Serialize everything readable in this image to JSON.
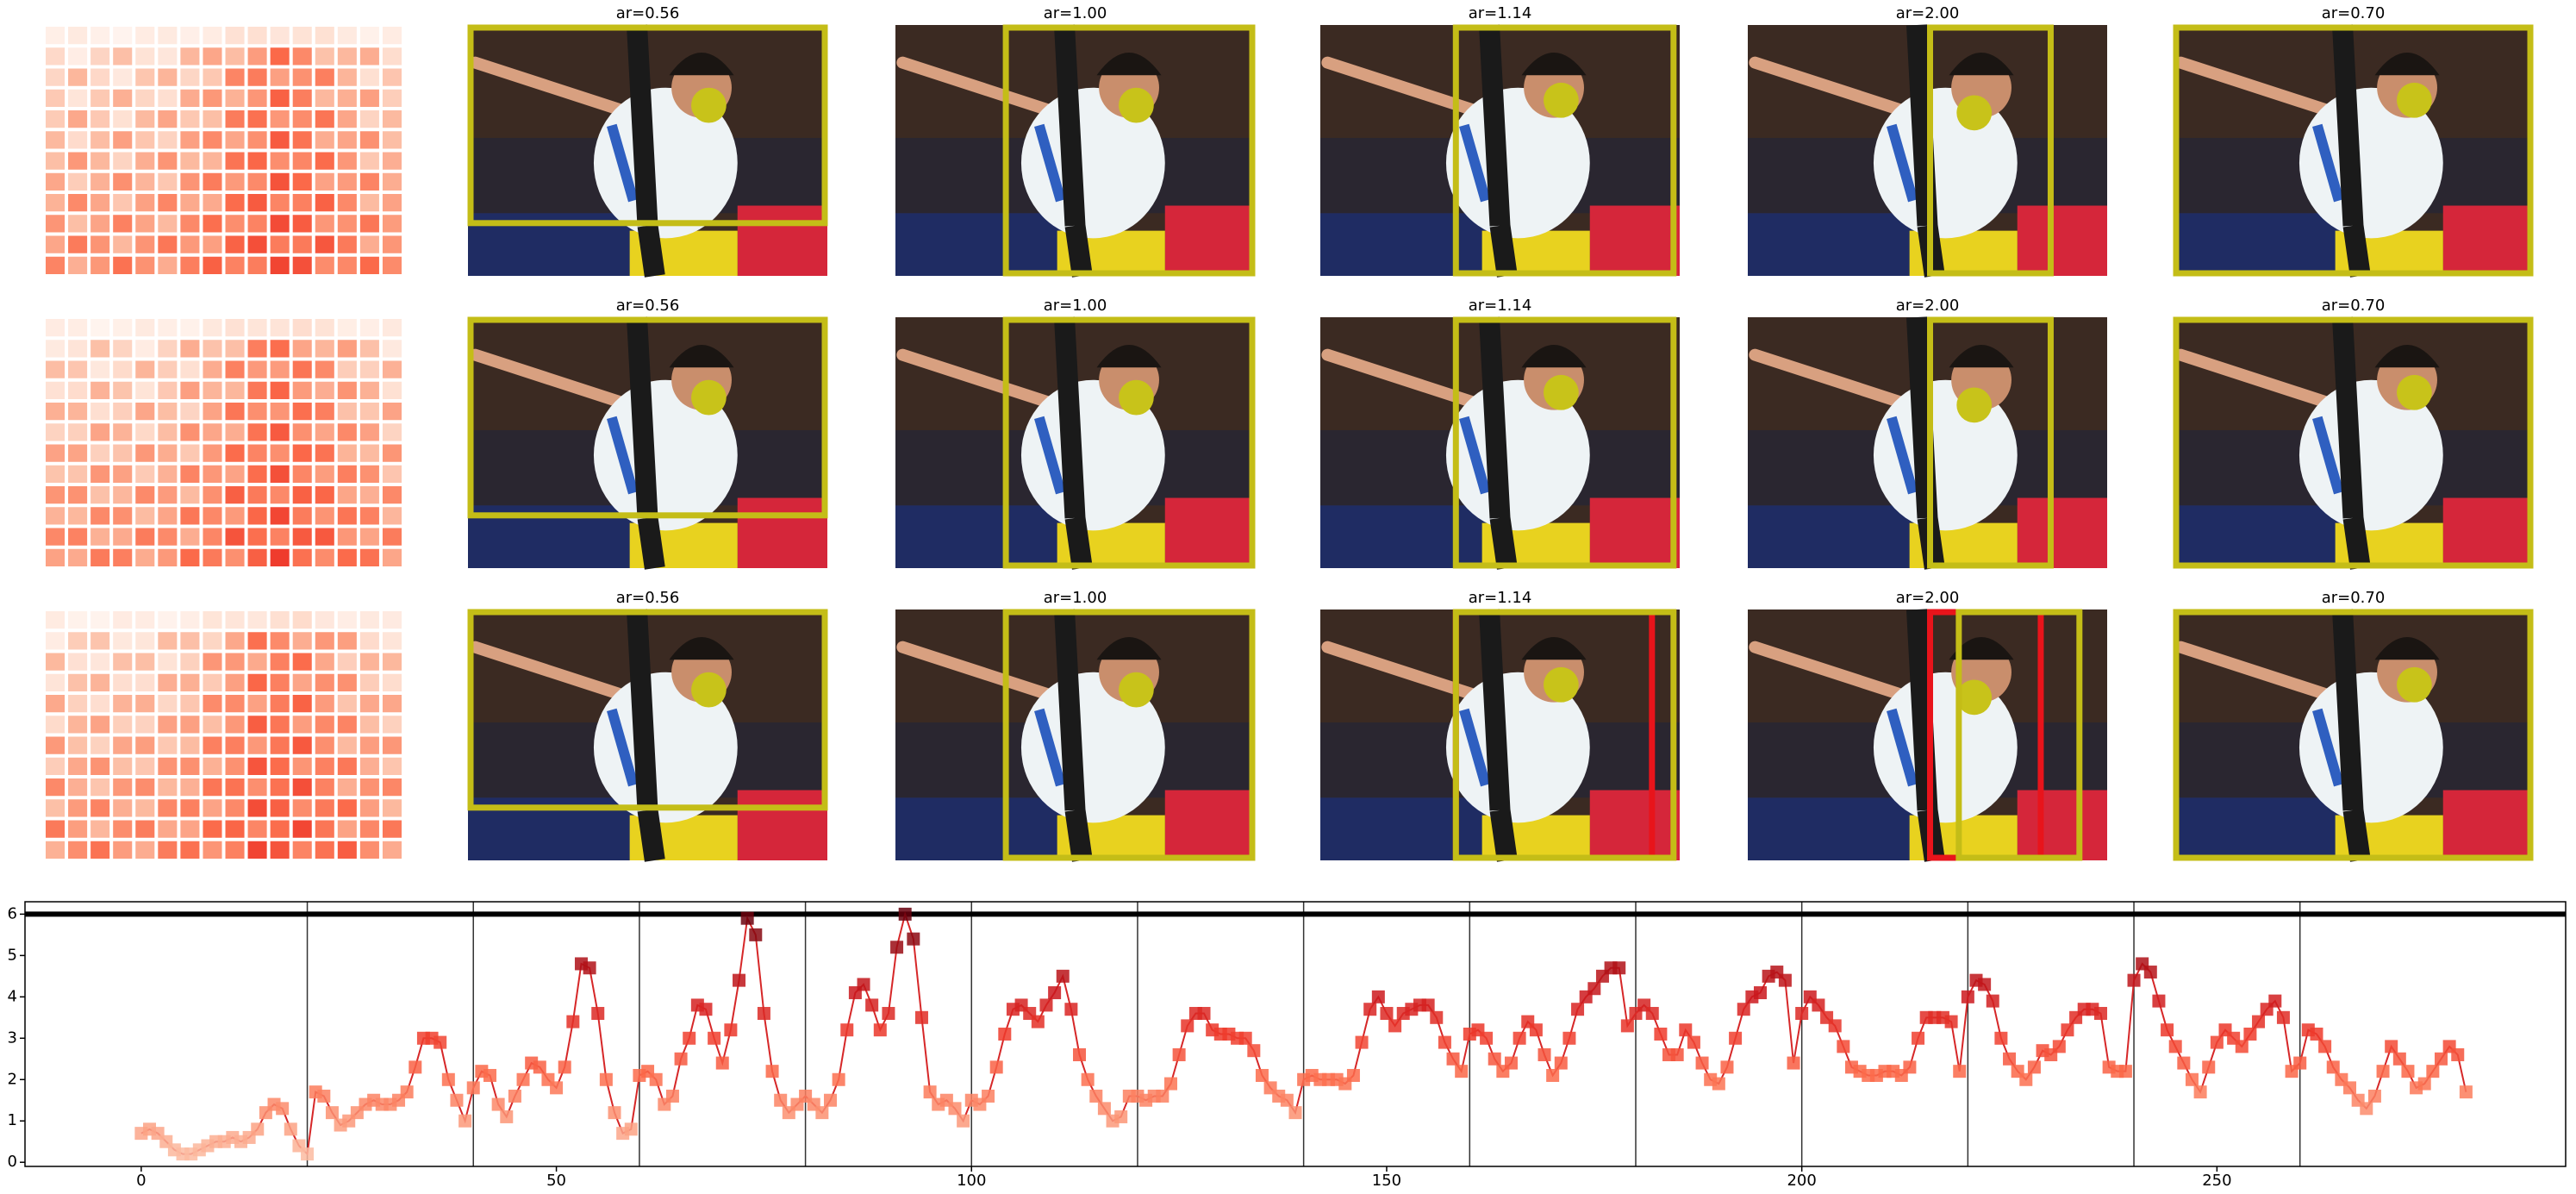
{
  "panels": [
    {
      "titles": [
        "ar=0.56",
        "ar=1.00",
        "ar=1.14",
        "ar=2.00",
        "ar=0.70"
      ]
    },
    {
      "titles": [
        "ar=0.56",
        "ar=1.00",
        "ar=1.14",
        "ar=2.00",
        "ar=0.70"
      ]
    },
    {
      "titles": [
        "ar=0.56",
        "ar=1.00",
        "ar=1.14",
        "ar=2.00",
        "ar=0.70"
      ]
    }
  ],
  "chart_data": {
    "type": "line",
    "color": "#d62728",
    "cmap": "Reds",
    "x": [
      0,
      1,
      2,
      3,
      4,
      5,
      6,
      7,
      8,
      9,
      10,
      11,
      12,
      13,
      14,
      15,
      16,
      17,
      18,
      19,
      20,
      21,
      22,
      23,
      24,
      25,
      26,
      27,
      28,
      29,
      30,
      31,
      32,
      33,
      34,
      35,
      36,
      37,
      38,
      39,
      40,
      41,
      42,
      43,
      44,
      45,
      46,
      47,
      48,
      49,
      50,
      51,
      52,
      53,
      54,
      55,
      56,
      57,
      58,
      59,
      60,
      61,
      62,
      63,
      64,
      65,
      66,
      67,
      68,
      69,
      70,
      71,
      72,
      73,
      74,
      75,
      76,
      77,
      78,
      79,
      80,
      81,
      82,
      83,
      84,
      85,
      86,
      87,
      88,
      89,
      90,
      91,
      92,
      93,
      94,
      95,
      96,
      97,
      98,
      99,
      100,
      101,
      102,
      103,
      104,
      105,
      106,
      107,
      108,
      109,
      110,
      111,
      112,
      113,
      114,
      115,
      116,
      117,
      118,
      119,
      120,
      121,
      122,
      123,
      124,
      125,
      126,
      127,
      128,
      129,
      130,
      131,
      132,
      133,
      134,
      135,
      136,
      137,
      138,
      139,
      140,
      141,
      142,
      143,
      144,
      145,
      146,
      147,
      148,
      149,
      150,
      151,
      152,
      153,
      154,
      155,
      156,
      157,
      158,
      159,
      160,
      161,
      162,
      163,
      164,
      165,
      166,
      167,
      168,
      169,
      170,
      171,
      172,
      173,
      174,
      175,
      176,
      177,
      178,
      179,
      180,
      181,
      182,
      183,
      184,
      185,
      186,
      187,
      188,
      189,
      190,
      191,
      192,
      193,
      194,
      195,
      196,
      197,
      198,
      199,
      200,
      201,
      202,
      203,
      204,
      205,
      206,
      207,
      208,
      209,
      210,
      211,
      212,
      213,
      214,
      215,
      216,
      217,
      218,
      219,
      220,
      221,
      222,
      223,
      224,
      225,
      226,
      227,
      228,
      229,
      230,
      231,
      232,
      233,
      234,
      235,
      236,
      237,
      238,
      239,
      240,
      241,
      242,
      243,
      244,
      245,
      246,
      247,
      248,
      249,
      250,
      251,
      252,
      253,
      254,
      255,
      256,
      257,
      258,
      259,
      260,
      261,
      262,
      263,
      264,
      265,
      266,
      267,
      268,
      269,
      270,
      271,
      272,
      273,
      274,
      275,
      276,
      277,
      278,
      279,
      280
    ],
    "values": [
      0.7,
      0.8,
      0.7,
      0.5,
      0.3,
      0.2,
      0.2,
      0.3,
      0.4,
      0.5,
      0.5,
      0.6,
      0.5,
      0.6,
      0.8,
      1.2,
      1.4,
      1.3,
      0.8,
      0.4,
      0.2,
      1.7,
      1.6,
      1.2,
      0.9,
      1.0,
      1.2,
      1.4,
      1.5,
      1.4,
      1.4,
      1.5,
      1.7,
      2.3,
      3.0,
      3.0,
      2.9,
      2.0,
      1.5,
      1.0,
      1.8,
      2.2,
      2.1,
      1.4,
      1.1,
      1.6,
      2.0,
      2.4,
      2.3,
      2.0,
      1.8,
      2.3,
      3.4,
      4.8,
      4.7,
      3.6,
      2.0,
      1.2,
      0.7,
      0.8,
      2.1,
      2.2,
      2.0,
      1.4,
      1.6,
      2.5,
      3.0,
      3.8,
      3.7,
      3.0,
      2.4,
      3.2,
      4.4,
      5.9,
      5.5,
      3.6,
      2.2,
      1.5,
      1.2,
      1.4,
      1.6,
      1.4,
      1.2,
      1.5,
      2.0,
      3.2,
      4.1,
      4.3,
      3.8,
      3.2,
      3.6,
      5.2,
      6.0,
      5.4,
      3.5,
      1.7,
      1.4,
      1.5,
      1.3,
      1.0,
      1.5,
      1.4,
      1.6,
      2.3,
      3.1,
      3.7,
      3.8,
      3.6,
      3.4,
      3.8,
      4.1,
      4.5,
      3.7,
      2.6,
      2.0,
      1.6,
      1.3,
      1.0,
      1.1,
      1.6,
      1.6,
      1.5,
      1.6,
      1.6,
      1.9,
      2.6,
      3.3,
      3.6,
      3.6,
      3.2,
      3.1,
      3.1,
      3.0,
      3.0,
      2.7,
      2.1,
      1.8,
      1.6,
      1.5,
      1.2,
      2.0,
      2.1,
      2.0,
      2.0,
      2.0,
      1.9,
      2.1,
      2.9,
      3.7,
      4.0,
      3.6,
      3.3,
      3.6,
      3.7,
      3.8,
      3.8,
      3.5,
      2.9,
      2.5,
      2.2,
      3.1,
      3.2,
      3.0,
      2.5,
      2.2,
      2.4,
      3.0,
      3.4,
      3.2,
      2.6,
      2.1,
      2.4,
      3.0,
      3.7,
      4.0,
      4.2,
      4.5,
      4.7,
      4.7,
      3.3,
      3.6,
      3.8,
      3.6,
      3.1,
      2.6,
      2.6,
      3.2,
      2.9,
      2.4,
      2.0,
      1.9,
      2.3,
      3.0,
      3.7,
      4.0,
      4.1,
      4.5,
      4.6,
      4.4,
      2.4,
      3.6,
      4.0,
      3.8,
      3.5,
      3.3,
      2.8,
      2.3,
      2.2,
      2.1,
      2.1,
      2.2,
      2.2,
      2.1,
      2.3,
      3.0,
      3.5,
      3.5,
      3.5,
      3.4,
      2.2,
      4.0,
      4.4,
      4.3,
      3.9,
      3.0,
      2.5,
      2.2,
      2.0,
      2.3,
      2.7,
      2.6,
      2.8,
      3.2,
      3.5,
      3.7,
      3.7,
      3.6,
      2.3,
      2.2,
      2.2,
      4.4,
      4.8,
      4.6,
      3.9,
      3.2,
      2.8,
      2.4,
      2.0,
      1.7,
      2.3,
      2.9,
      3.2,
      3.0,
      2.8,
      3.1,
      3.4,
      3.7,
      3.9,
      3.5,
      2.2,
      2.4,
      3.2,
      3.1,
      2.8,
      2.3,
      2.0,
      1.8,
      1.5,
      1.3,
      1.6,
      2.2,
      2.8,
      2.5,
      2.2,
      1.8,
      1.9,
      2.2,
      2.5,
      2.8,
      2.6,
      1.7
    ],
    "xlim": [
      -14,
      292
    ],
    "ylim": [
      -0.1,
      6.3
    ],
    "xticks": [
      0,
      50,
      100,
      150,
      200,
      250
    ],
    "yticks": [
      0,
      1,
      2,
      3,
      4,
      5,
      6
    ],
    "vlines": [
      20,
      40,
      60,
      80,
      100,
      120,
      140,
      160,
      180,
      200,
      220,
      240,
      260
    ],
    "hline": 6
  }
}
